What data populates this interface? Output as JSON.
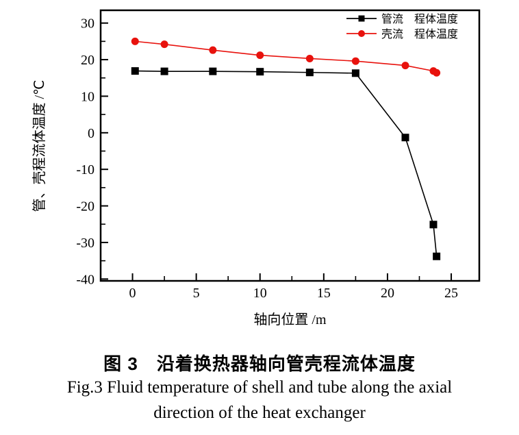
{
  "chart_data": {
    "type": "line",
    "title": "",
    "xlabel": "轴向位置 /m",
    "ylabel": "管、壳程流体温度 /℃",
    "x": [
      0.2,
      2.5,
      6.3,
      10,
      13.9,
      17.5,
      21.4,
      23.6,
      23.85
    ],
    "series": [
      {
        "name": "管流　程体温度",
        "color": "#000000",
        "marker": "square",
        "values": [
          16.9,
          16.8,
          16.8,
          16.7,
          16.5,
          16.3,
          -1.3,
          -25.1,
          -33.8
        ]
      },
      {
        "name": "壳流　程体温度",
        "color": "#e8120d",
        "marker": "circle",
        "values": [
          25.0,
          24.2,
          22.6,
          21.2,
          20.3,
          19.6,
          18.4,
          16.9,
          16.4
        ]
      }
    ],
    "xlim": [
      -2.5,
      27.2
    ],
    "ylim": [
      -40.5,
      33.5
    ],
    "x_major_ticks": [
      0,
      5,
      10,
      15,
      20,
      25
    ],
    "x_minor_ticks": [
      2.5,
      7.5,
      12.5,
      17.5,
      22.5
    ],
    "y_major_ticks": [
      30,
      20,
      10,
      0,
      -10,
      -20,
      -30,
      -40
    ],
    "y_minor_ticks": [
      25,
      15,
      5,
      -5,
      -15,
      -25,
      -35
    ],
    "grid": false,
    "legend_position": "top-right"
  },
  "caption": {
    "zh": "图 3　沿着换热器轴向管壳程流体温度",
    "en_line1": "Fig.3  Fluid temperature of shell and tube along the axial",
    "en_line2": "direction of the heat exchanger"
  }
}
